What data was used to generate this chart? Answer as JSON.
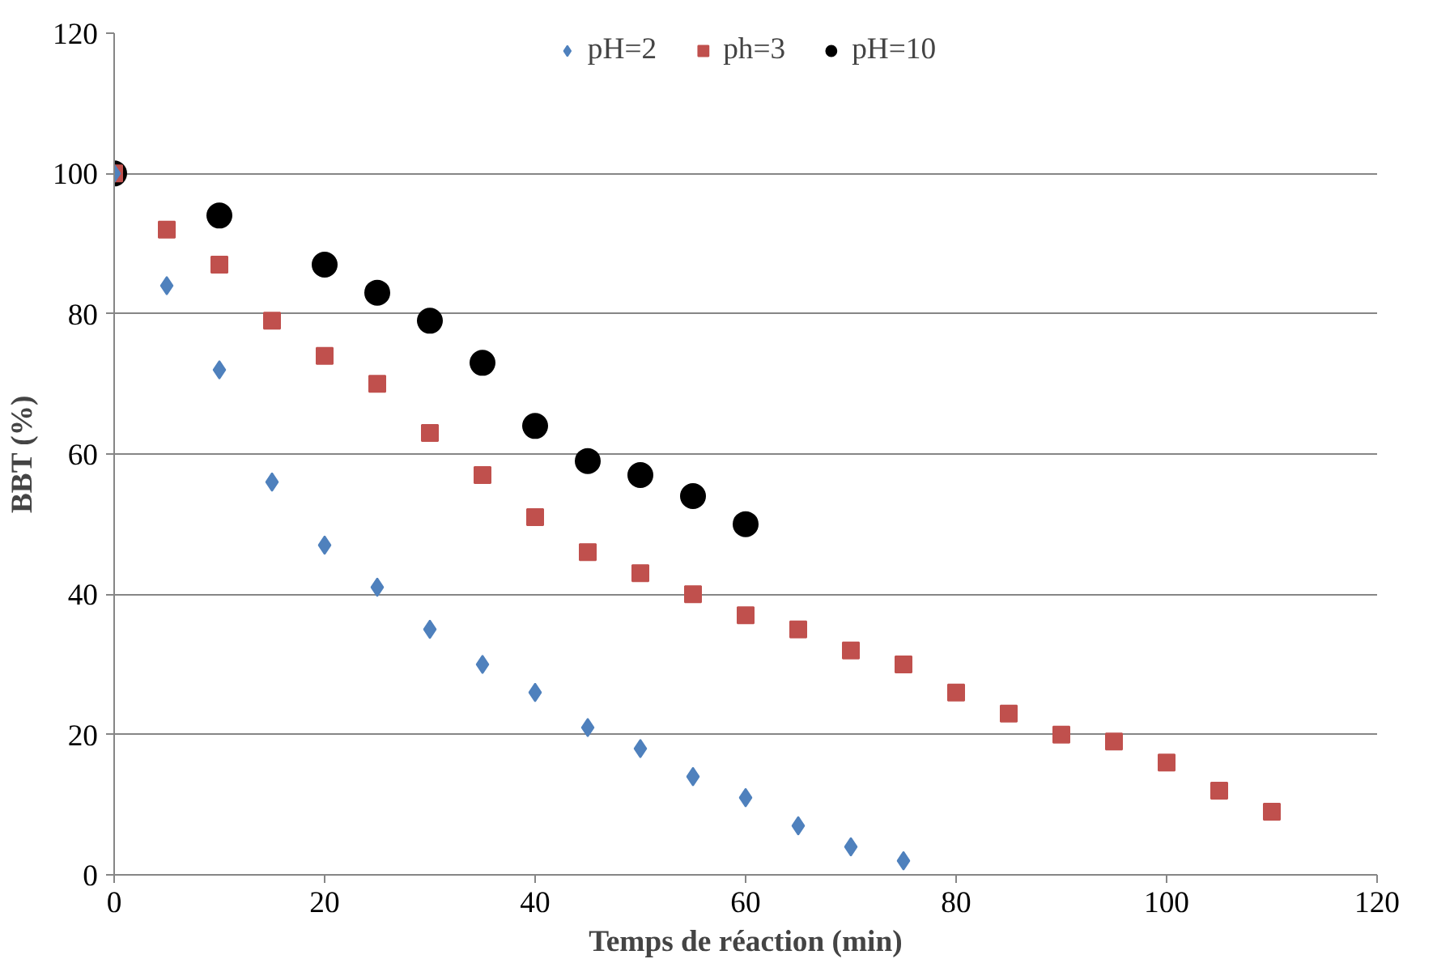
{
  "chart_data": {
    "type": "scatter",
    "xlabel": "Temps de réaction (min)",
    "ylabel": "BBT (%)",
    "xlim": [
      0,
      120
    ],
    "xticks": [
      0,
      20,
      40,
      60,
      80,
      100,
      120
    ],
    "ylim": [
      0,
      120
    ],
    "yticks": [
      0,
      20,
      40,
      60,
      80,
      100,
      120
    ],
    "grid": "y",
    "legend": "top",
    "series": [
      {
        "name": "pH=2",
        "color": "#4f81bd",
        "marker": "diamond",
        "x": [
          0,
          5,
          10,
          15,
          20,
          25,
          30,
          35,
          40,
          45,
          50,
          55,
          60,
          65,
          70,
          75
        ],
        "values": [
          100,
          84,
          72,
          56,
          47,
          41,
          35,
          30,
          26,
          21,
          18,
          14,
          11,
          7,
          4,
          2
        ]
      },
      {
        "name": "ph=3",
        "color": "#c0504d",
        "marker": "square",
        "x": [
          0,
          5,
          10,
          15,
          20,
          25,
          30,
          35,
          40,
          45,
          50,
          55,
          60,
          65,
          70,
          75,
          80,
          85,
          90,
          95,
          100,
          105,
          110
        ],
        "values": [
          100,
          92,
          87,
          79,
          74,
          70,
          63,
          57,
          51,
          46,
          43,
          40,
          37,
          35,
          32,
          30,
          26,
          23,
          20,
          19,
          16,
          12,
          9
        ]
      },
      {
        "name": "pH=10",
        "color": "#000000",
        "marker": "circle",
        "x": [
          0,
          10,
          20,
          25,
          30,
          35,
          40,
          45,
          50,
          55,
          60
        ],
        "values": [
          100,
          94,
          87,
          83,
          79,
          73,
          64,
          59,
          57,
          54,
          50
        ]
      }
    ]
  }
}
